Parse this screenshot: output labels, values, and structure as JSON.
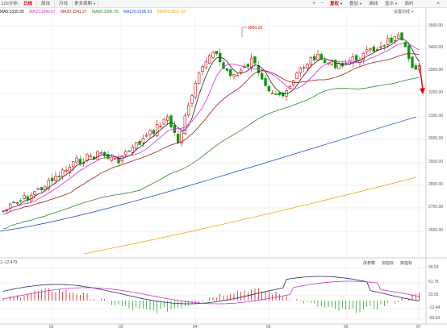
{
  "toolbar": {
    "tabs": [
      {
        "label": "120分钟",
        "active": false
      },
      {
        "label": "日线",
        "active": true
      },
      {
        "label": "周线",
        "active": false
      },
      {
        "label": "月线",
        "active": false
      },
      {
        "label": "更多周期",
        "active": false
      }
    ],
    "right": [
      {
        "label": "复权",
        "highlight": true
      },
      {
        "label": "叠加",
        "highlight": false
      },
      {
        "label": "画线",
        "highlight": false
      },
      {
        "label": "显示",
        "highlight": false
      },
      {
        "label": "简约",
        "highlight": false
      }
    ],
    "plus": "+",
    "minus": "−",
    "close": "×"
  },
  "ma_legend": [
    {
      "label": "MA5:3335.95",
      "color": "#222222"
    },
    {
      "label": "MA10:3349.67",
      "color": "#cc33cc"
    },
    {
      "label": "MA20:3341.27",
      "color": "#a01818"
    },
    {
      "label": "MA60:3306.75",
      "color": "#2a8a2a"
    },
    {
      "label": "MA120:3106.93",
      "color": "#2255cc"
    },
    {
      "label": "MA250:2837.93",
      "color": "#f5a623"
    }
  ],
  "settings_label": "设置均线",
  "price_axis": [
    "3500.00",
    "3400.00",
    "3300.00",
    "3200.00",
    "3100.00",
    "3000.00",
    "2900.00",
    "2800.00",
    "2700.00",
    "2600.00"
  ],
  "high_marker": "3500.10",
  "month_axis": [
    "02",
    "03",
    "04",
    "05",
    "06",
    "07"
  ],
  "macd": {
    "label": "1:-12.479",
    "buttons": [
      "改参数",
      "加指标",
      "换指标"
    ],
    "axis": [
      "99.93",
      "61.75",
      "23.55",
      "-12.44",
      "-50.63"
    ]
  },
  "colors": {
    "up": "#d20000",
    "down": "#129612",
    "grid": "#e6e6e6"
  }
}
